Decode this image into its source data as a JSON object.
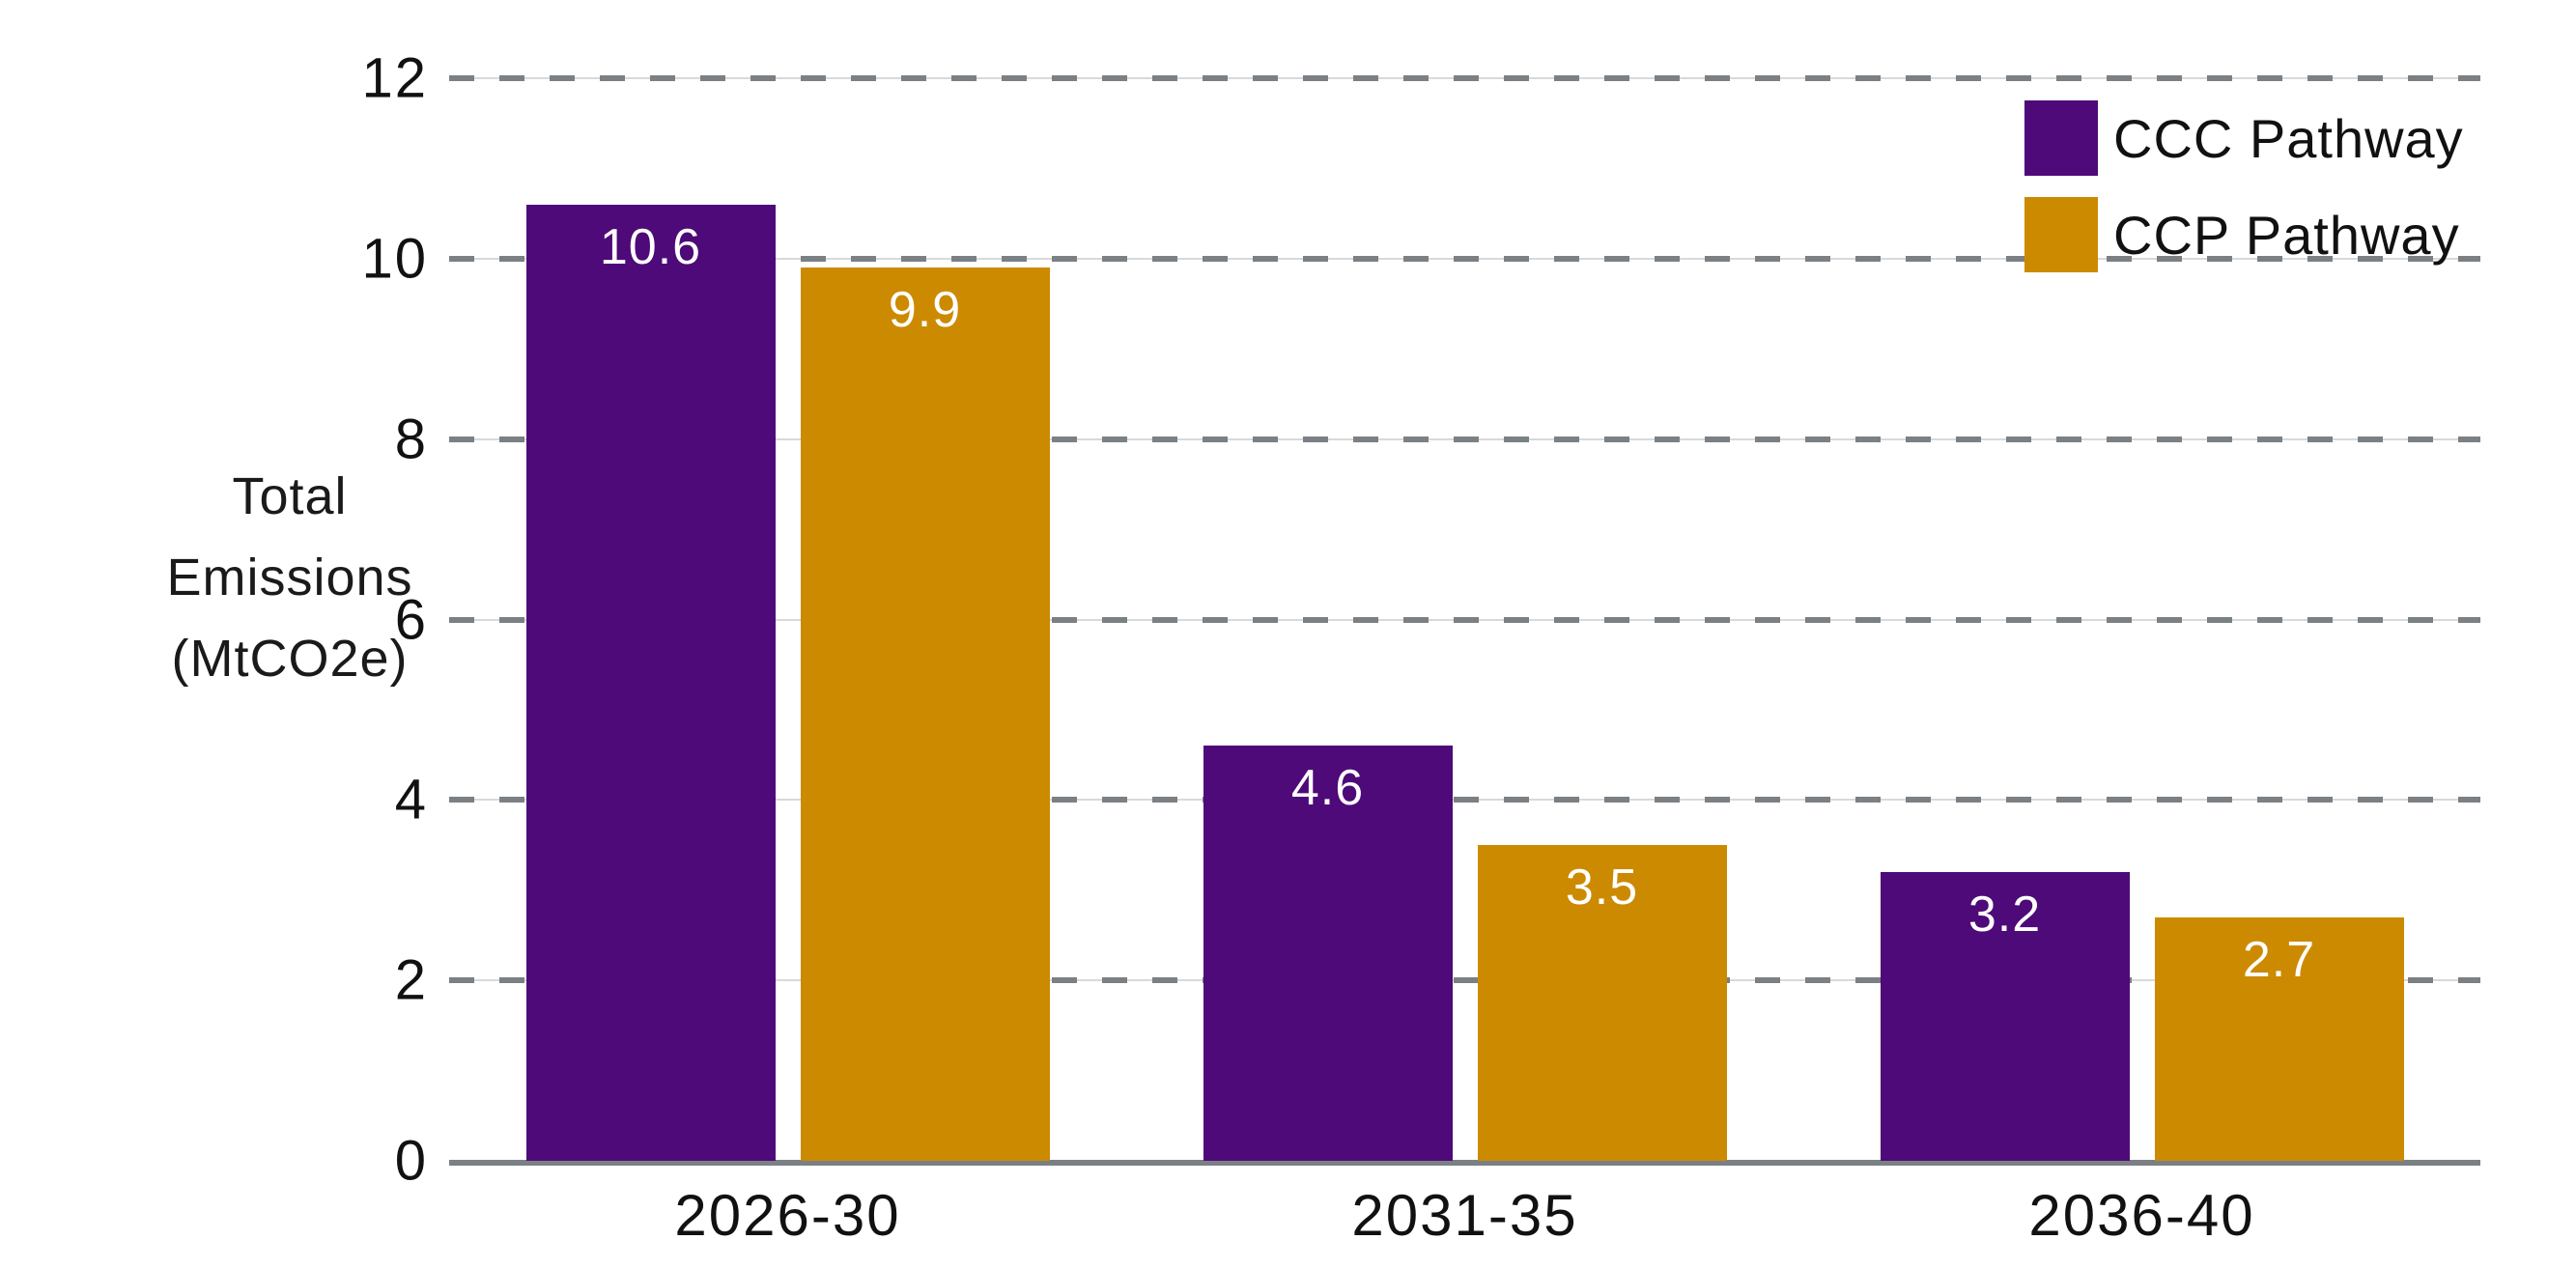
{
  "chart_data": {
    "type": "bar",
    "title": "",
    "categories": [
      "2026-30",
      "2031-35",
      "2036-40"
    ],
    "series": [
      {
        "name": "CCC Pathway",
        "color": "#4E0A78",
        "values": [
          10.6,
          4.6,
          3.2
        ]
      },
      {
        "name": "CCP Pathway",
        "color": "#CC8A00",
        "values": [
          9.9,
          3.5,
          2.7
        ]
      }
    ],
    "xlabel": "",
    "ylabel": "Total Emissions (MtCO2e)",
    "ylabel_lines": [
      "Total",
      "Emissions",
      "(MtCO2e)"
    ],
    "ylim": [
      0,
      12
    ],
    "yticks": [
      {
        "value": 0,
        "label": "0"
      },
      {
        "value": 2,
        "label": "2"
      },
      {
        "value": 4,
        "label": "4"
      },
      {
        "value": 6,
        "label": "6"
      },
      {
        "value": 8,
        "label": "8"
      },
      {
        "value": 10,
        "label": "10"
      },
      {
        "value": 12,
        "label": "12"
      }
    ],
    "grid": "horizontal-dashed",
    "legend_position": "top-right",
    "bar_label_color": "#ffffff",
    "colors": {
      "grid_dash": "#7b8084",
      "grid_faint_line": "#d9d9d9",
      "axis_line": "#7b8084",
      "text": "#111111",
      "background": "#ffffff"
    }
  }
}
